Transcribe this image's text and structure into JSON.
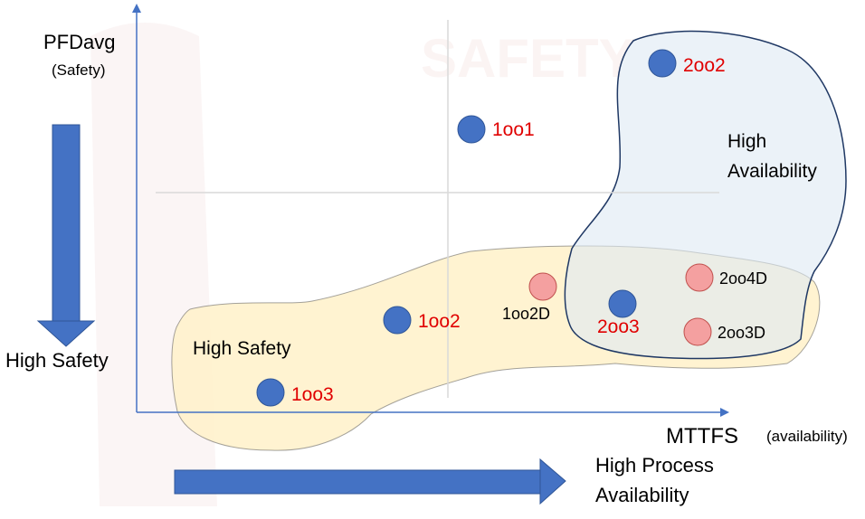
{
  "colors": {
    "blue_dot": "#4472C4",
    "pink_dot": "#F4A0A0",
    "red_label": "#E00000",
    "black_label": "#000000",
    "safety_region": "#FFF2CC",
    "availability_region": "#DEEAF4",
    "axis": "#4472C4",
    "arrow": "#4472C4"
  },
  "axes": {
    "y_label": "PFDavg",
    "y_sublabel": "(Safety)",
    "x_label": "MTTFS",
    "x_sublabel": "(availability)"
  },
  "indicators": {
    "high_safety": "High Safety",
    "high_process_line1": "High Process",
    "high_process_line2": "Availability"
  },
  "regions": {
    "safety_label": "High Safety",
    "availability_line1": "High",
    "availability_line2": "Availability"
  },
  "watermark": {
    "text": "SAFETY"
  },
  "architectures": [
    {
      "name": "1oo1",
      "type": "blue",
      "label_color": "red"
    },
    {
      "name": "2oo2",
      "type": "blue",
      "label_color": "red"
    },
    {
      "name": "1oo2",
      "type": "blue",
      "label_color": "red"
    },
    {
      "name": "1oo3",
      "type": "blue",
      "label_color": "red"
    },
    {
      "name": "2oo3",
      "type": "blue",
      "label_color": "red"
    },
    {
      "name": "1oo2D",
      "type": "pink",
      "label_color": "black"
    },
    {
      "name": "2oo4D",
      "type": "pink",
      "label_color": "black"
    },
    {
      "name": "2oo3D",
      "type": "pink",
      "label_color": "black"
    }
  ]
}
